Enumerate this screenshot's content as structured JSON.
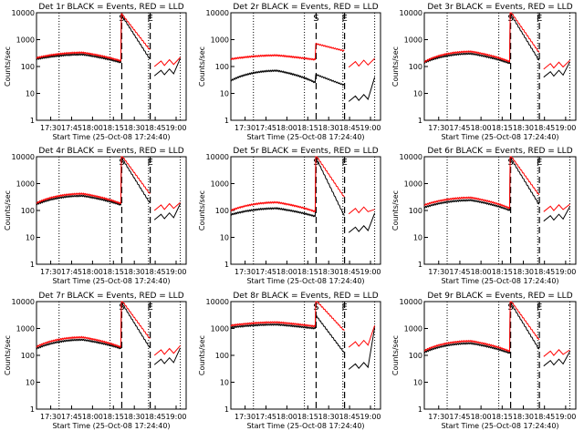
{
  "chart_data": {
    "type": "line",
    "layout": "3x3 grid",
    "shared": {
      "xlabel": "Start Time (25-Oct-08 17:24:40)",
      "ylabel": "Counts/sec",
      "y_scale": "log",
      "ylim": [
        1,
        10000
      ],
      "xlim_hours": [
        17.33,
        19.12
      ],
      "x_tick_values_hours": [
        17.5,
        17.75,
        18.0,
        18.25,
        18.5,
        18.75,
        19.0
      ],
      "x_tick_labels": [
        "17:30",
        "17:45",
        "18:00",
        "18:15",
        "18:30",
        "18:45",
        "19:00"
      ],
      "y_tick_values": [
        1,
        10,
        100,
        1000,
        10000
      ],
      "y_tick_labels": [
        "1",
        "10",
        "100",
        "1000",
        "10000"
      ],
      "dotted_markers_hours": [
        17.6,
        18.21,
        18.67,
        19.05
      ],
      "dashed_markers_hours": [
        18.35,
        18.69
      ],
      "marker_labels": [
        {
          "text": "S",
          "x": 18.35
        },
        {
          "text": "E",
          "x": 18.69
        }
      ],
      "series_colors": {
        "events": "#000000",
        "lld": "#ff0000"
      }
    },
    "panels": [
      {
        "title": "Det 1r BLACK = Events, RED = LLD",
        "black": {
          "t0": 190,
          "t1": 280,
          "t2": 140,
          "tf": 200,
          "gap": 90,
          "jump": 8000
        },
        "red": {
          "t0": 210,
          "t1": 330,
          "t2": 160,
          "tf": 220,
          "gap": 200,
          "jump": 9000
        }
      },
      {
        "title": "Det 2r BLACK = Events, RED = LLD",
        "black": {
          "t0": 30,
          "t1": 70,
          "t2": 25,
          "tf": 40,
          "gap": 10,
          "jump": 50
        },
        "red": {
          "t0": 190,
          "t1": 260,
          "t2": 180,
          "tf": 200,
          "gap": 190,
          "jump": 700
        }
      },
      {
        "title": "Det 3r BLACK = Events, RED = LLD",
        "black": {
          "t0": 140,
          "t1": 300,
          "t2": 130,
          "tf": 150,
          "gap": 80,
          "jump": 9000
        },
        "red": {
          "t0": 150,
          "t1": 360,
          "t2": 150,
          "tf": 170,
          "gap": 160,
          "jump": 11000
        }
      },
      {
        "title": "Det 4r BLACK = Events, RED = LLD",
        "black": {
          "t0": 170,
          "t1": 350,
          "t2": 160,
          "tf": 180,
          "gap": 90,
          "jump": 9000
        },
        "red": {
          "t0": 190,
          "t1": 420,
          "t2": 180,
          "tf": 200,
          "gap": 200,
          "jump": 11000
        }
      },
      {
        "title": "Det 5r BLACK = Events, RED = LLD",
        "black": {
          "t0": 70,
          "t1": 120,
          "t2": 60,
          "tf": 80,
          "gap": 30,
          "jump": 9000
        },
        "red": {
          "t0": 100,
          "t1": 200,
          "t2": 90,
          "tf": 110,
          "gap": 150,
          "jump": 11000
        }
      },
      {
        "title": "Det 6r BLACK = Events, RED = LLD",
        "black": {
          "t0": 130,
          "t1": 240,
          "t2": 100,
          "tf": 140,
          "gap": 80,
          "jump": 9000
        },
        "red": {
          "t0": 160,
          "t1": 300,
          "t2": 120,
          "tf": 170,
          "gap": 180,
          "jump": 11000
        }
      },
      {
        "title": "Det 7r BLACK = Events, RED = LLD",
        "black": {
          "t0": 180,
          "t1": 380,
          "t2": 180,
          "tf": 190,
          "gap": 90,
          "jump": 9000
        },
        "red": {
          "t0": 210,
          "t1": 470,
          "t2": 200,
          "tf": 230,
          "gap": 200,
          "jump": 11000
        }
      },
      {
        "title": "Det 8r BLACK = Events, RED = LLD",
        "black": {
          "t0": 1100,
          "t1": 1400,
          "t2": 1000,
          "tf": 1100,
          "gap": 60,
          "jump": 3000
        },
        "red": {
          "t0": 1300,
          "t1": 1700,
          "t2": 1200,
          "tf": 1300,
          "gap": 400,
          "jump": 11000
        }
      },
      {
        "title": "Det 9r BLACK = Events, RED = LLD",
        "black": {
          "t0": 130,
          "t1": 280,
          "t2": 120,
          "tf": 140,
          "gap": 80,
          "jump": 9000
        },
        "red": {
          "t0": 150,
          "t1": 340,
          "t2": 140,
          "tf": 160,
          "gap": 180,
          "jump": 11000
        }
      }
    ]
  }
}
